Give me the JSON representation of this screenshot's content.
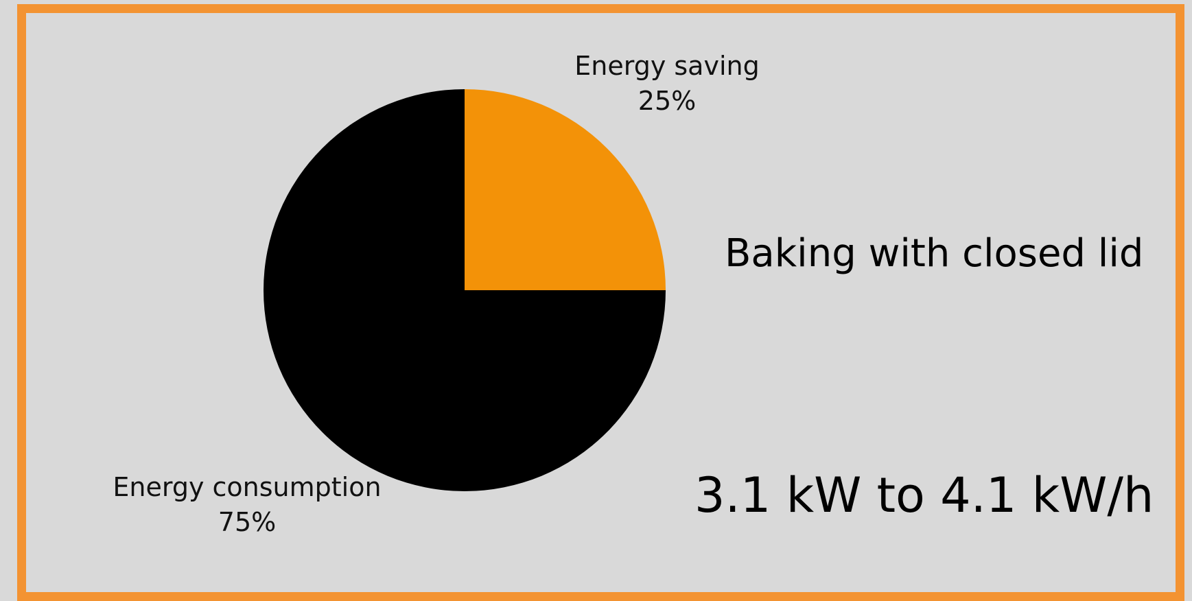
{
  "colors": {
    "frame": "#f39332",
    "background": "#d9d9d9",
    "saving": "#f39208",
    "consumption": "#000000"
  },
  "chart_data": {
    "type": "pie",
    "slices": [
      {
        "label": "Energy saving",
        "value": 25,
        "value_text": "25%",
        "color": "#f39208"
      },
      {
        "label": "Energy consumption",
        "value": 75,
        "value_text": "75%",
        "color": "#000000"
      }
    ],
    "start_angle_deg": 0,
    "direction": "clockwise",
    "legend": "none"
  },
  "text": {
    "title": "Baking with closed lid",
    "value_range": "3.1 kW to 4.1 kW/h"
  }
}
